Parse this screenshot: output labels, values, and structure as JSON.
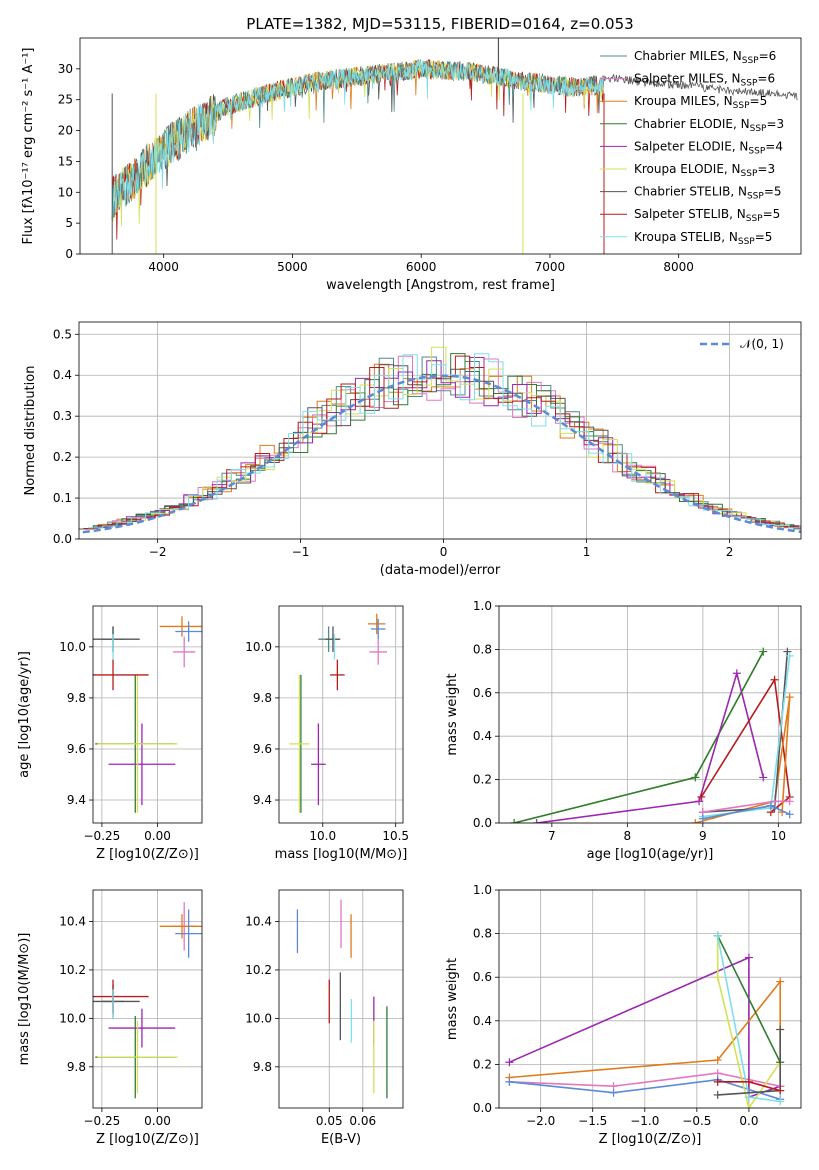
{
  "colors": {
    "Chabrier MILES": "#4e8c8c",
    "Salpeter MILES": "#e377c2",
    "Kroupa MILES": "#e07b1a",
    "Chabrier ELODIE": "#2e7d32",
    "Salpeter ELODIE": "#9c27b0",
    "Kroupa ELODIE": "#d4e157",
    "Chabrier STELIB": "#555555",
    "Salpeter STELIB": "#b71c1c",
    "Kroupa STELIB": "#80deea",
    "Blue": "#5b8ad6"
  },
  "chart_data": [
    {
      "type": "line",
      "title": "PLATE=1382, MJD=53115, FIBERID=0164, z=0.053",
      "xlabel": "wavelength [Angstrom, rest frame]",
      "ylabel": "Flux [fλ10⁻¹⁷ erg cm⁻² s⁻¹ A⁻¹]",
      "xlim": [
        3350,
        8950
      ],
      "ylim": [
        0,
        35
      ],
      "xticks": [
        "4000",
        "5000",
        "6000",
        "7000",
        "8000"
      ],
      "yticks": [
        "0",
        "5",
        "10",
        "15",
        "20",
        "25",
        "30"
      ],
      "legend_position": "top-right",
      "series": [
        {
          "name": "Chabrier MILES, N",
          "sub": "SSP",
          "suffix": "=6"
        },
        {
          "name": "Salpeter MILES, N",
          "sub": "SSP",
          "suffix": "=6"
        },
        {
          "name": "Kroupa MILES, N",
          "sub": "SSP",
          "suffix": "=5"
        },
        {
          "name": "Chabrier ELODIE, N",
          "sub": "SSP",
          "suffix": "=3"
        },
        {
          "name": "Salpeter ELODIE, N",
          "sub": "SSP",
          "suffix": "=4"
        },
        {
          "name": "Kroupa ELODIE, N",
          "sub": "SSP",
          "suffix": "=3"
        },
        {
          "name": "Chabrier STELIB, N",
          "sub": "SSP",
          "suffix": "=5"
        },
        {
          "name": "Salpeter STELIB, N",
          "sub": "SSP",
          "suffix": "=5"
        },
        {
          "name": "Kroupa STELIB, N",
          "sub": "SSP",
          "suffix": "=5"
        }
      ],
      "continuum_points": [
        [
          3600,
          9
        ],
        [
          3800,
          13
        ],
        [
          4000,
          17
        ],
        [
          4200,
          20
        ],
        [
          4500,
          24
        ],
        [
          4800,
          26
        ],
        [
          5200,
          28
        ],
        [
          5600,
          29
        ],
        [
          6000,
          30
        ],
        [
          6400,
          29.5
        ],
        [
          6800,
          28
        ],
        [
          7200,
          27
        ],
        [
          7420,
          27.5
        ]
      ]
    },
    {
      "type": "histogram",
      "xlabel": "(data-model)/error",
      "ylabel": "Normed distribution",
      "xlim": [
        -2.55,
        2.5
      ],
      "ylim": [
        0,
        0.53
      ],
      "xticks": [
        "−2",
        "−1",
        "0",
        "1",
        "2"
      ],
      "yticks": [
        "0.0",
        "0.1",
        "0.2",
        "0.3",
        "0.4",
        "0.5"
      ],
      "legend": "𝒩(0, 1)",
      "bin_width": 0.1,
      "bin_start": -2.55
    },
    {
      "type": "scatter",
      "xlabel": "Z [log10(Z/Z⊙)]",
      "ylabel": "age [log10(age/yr)]",
      "xlim": [
        -0.29,
        0.2
      ],
      "ylim": [
        9.31,
        10.16
      ],
      "xticks": [
        "−0.25",
        "0.00"
      ],
      "yticks": [
        "9.4",
        "9.6",
        "9.8",
        "10.0"
      ],
      "points": [
        {
          "s": "Chabrier MILES",
          "x": -0.2,
          "y": 10.03,
          "xerr": 0.05,
          "yerr": 0.05
        },
        {
          "s": "Salpeter MILES",
          "x": 0.12,
          "y": 9.98,
          "xerr": 0.05,
          "yerr": 0.06
        },
        {
          "s": "Kroupa MILES",
          "x": 0.11,
          "y": 10.08,
          "xerr": 0.1,
          "yerr": 0.04
        },
        {
          "s": "Chabrier ELODIE",
          "x": -0.1,
          "y": 9.62,
          "xerr": 0.18,
          "yerr": 0.27
        },
        {
          "s": "Salpeter ELODIE",
          "x": -0.07,
          "y": 9.54,
          "xerr": 0.15,
          "yerr": 0.16
        },
        {
          "s": "Kroupa ELODIE",
          "x": -0.09,
          "y": 9.62,
          "xerr": 0.18,
          "yerr": 0.27
        },
        {
          "s": "Chabrier STELIB",
          "x": -0.2,
          "y": 10.03,
          "xerr": 0.12,
          "yerr": 0.05
        },
        {
          "s": "Salpeter STELIB",
          "x": -0.2,
          "y": 9.89,
          "xerr": 0.16,
          "yerr": 0.06
        },
        {
          "s": "Kroupa STELIB",
          "x": -0.2,
          "y": 10.0,
          "xerr": 0.0,
          "yerr": 0.05
        },
        {
          "s": "Blue",
          "x": 0.14,
          "y": 10.06,
          "xerr": 0.06,
          "yerr": 0.04
        }
      ]
    },
    {
      "type": "scatter",
      "xlabel": "mass [log10(M/M⊙)]",
      "ylabel": "",
      "xlim": [
        9.7,
        10.55
      ],
      "ylim": [
        9.31,
        10.16
      ],
      "xticks": [
        "10.0",
        "10.5"
      ],
      "yticks": [
        "9.4",
        "9.6",
        "9.8",
        "10.0"
      ],
      "points": [
        {
          "s": "Chabrier MILES",
          "x": 10.04,
          "y": 10.03,
          "xerr": 0.07,
          "yerr": 0.05
        },
        {
          "s": "Salpeter MILES",
          "x": 10.38,
          "y": 9.98,
          "xerr": 0.06,
          "yerr": 0.05
        },
        {
          "s": "Kroupa MILES",
          "x": 10.37,
          "y": 10.09,
          "xerr": 0.06,
          "yerr": 0.04
        },
        {
          "s": "Chabrier ELODIE",
          "x": 9.85,
          "y": 9.62,
          "xerr": 0.0,
          "yerr": 0.27
        },
        {
          "s": "Salpeter ELODIE",
          "x": 9.97,
          "y": 9.54,
          "xerr": 0.05,
          "yerr": 0.16
        },
        {
          "s": "Kroupa ELODIE",
          "x": 9.84,
          "y": 9.62,
          "xerr": 0.07,
          "yerr": 0.27
        },
        {
          "s": "Chabrier STELIB",
          "x": 10.07,
          "y": 10.03,
          "xerr": 0.05,
          "yerr": 0.05
        },
        {
          "s": "Salpeter STELIB",
          "x": 10.1,
          "y": 9.89,
          "xerr": 0.05,
          "yerr": 0.06
        },
        {
          "s": "Kroupa STELIB",
          "x": 10.08,
          "y": 10.0,
          "xerr": 0.0,
          "yerr": 0.05
        },
        {
          "s": "Blue",
          "x": 10.38,
          "y": 10.07,
          "xerr": 0.05,
          "yerr": 0.04
        }
      ]
    },
    {
      "type": "line",
      "xlabel": "age [log10(age/yr)]",
      "ylabel": "mass weight",
      "xlim": [
        6.3,
        10.3
      ],
      "ylim": [
        0,
        1.0
      ],
      "xticks": [
        "7",
        "8",
        "9",
        "10"
      ],
      "yticks": [
        "0.0",
        "0.2",
        "0.4",
        "0.6",
        "0.8",
        "1.0"
      ],
      "series": [
        {
          "s": "Kroupa ELODIE",
          "x": [
            6.5,
            8.9,
            9.8
          ],
          "y": [
            0.0,
            0.21,
            0.79
          ]
        },
        {
          "s": "Chabrier ELODIE",
          "x": [
            6.5,
            8.9,
            9.8
          ],
          "y": [
            0.0,
            0.21,
            0.79
          ]
        },
        {
          "s": "Salpeter ELODIE",
          "x": [
            6.8,
            8.95,
            9.45,
            9.8
          ],
          "y": [
            0.0,
            0.1,
            0.69,
            0.21
          ]
        },
        {
          "s": "Salpeter STELIB",
          "x": [
            8.98,
            9.95,
            10.15,
            9.9
          ],
          "y": [
            0.12,
            0.66,
            0.12,
            0.05
          ]
        },
        {
          "s": "Kroupa MILES",
          "x": [
            8.9,
            9.95,
            10.15,
            10.05
          ],
          "y": [
            0.0,
            0.1,
            0.58,
            0.05
          ]
        },
        {
          "s": "Chabrier STELIB",
          "x": [
            9.0,
            9.95,
            10.12
          ],
          "y": [
            0.05,
            0.07,
            0.79
          ]
        },
        {
          "s": "Kroupa STELIB",
          "x": [
            9.0,
            9.9,
            10.15
          ],
          "y": [
            0.03,
            0.07,
            0.77
          ]
        },
        {
          "s": "Salpeter MILES",
          "x": [
            9.0,
            9.95,
            10.15
          ],
          "y": [
            0.05,
            0.1,
            0.1
          ]
        },
        {
          "s": "Blue",
          "x": [
            9.0,
            9.9,
            10.15
          ],
          "y": [
            0.02,
            0.08,
            0.04
          ]
        }
      ]
    },
    {
      "type": "scatter",
      "xlabel": "Z [log10(Z/Z⊙)]",
      "ylabel": "mass [log10(M/M⊙)]",
      "xlim": [
        -0.29,
        0.2
      ],
      "ylim": [
        9.63,
        10.53
      ],
      "xticks": [
        "−0.25",
        "0.00"
      ],
      "yticks": [
        "9.8",
        "10.0",
        "10.2",
        "10.4"
      ],
      "points": [
        {
          "s": "Chabrier MILES",
          "x": -0.2,
          "y": 10.07,
          "xerr": 0.05,
          "yerr": 0.05
        },
        {
          "s": "Salpeter MILES",
          "x": 0.12,
          "y": 10.38,
          "xerr": 0.05,
          "yerr": 0.1
        },
        {
          "s": "Kroupa MILES",
          "x": 0.11,
          "y": 10.38,
          "xerr": 0.1,
          "yerr": 0.05
        },
        {
          "s": "Chabrier ELODIE",
          "x": -0.1,
          "y": 9.84,
          "xerr": 0.18,
          "yerr": 0.17
        },
        {
          "s": "Salpeter ELODIE",
          "x": -0.07,
          "y": 9.96,
          "xerr": 0.15,
          "yerr": 0.08
        },
        {
          "s": "Kroupa ELODIE",
          "x": -0.09,
          "y": 9.84,
          "xerr": 0.18,
          "yerr": 0.15
        },
        {
          "s": "Chabrier STELIB",
          "x": -0.2,
          "y": 10.07,
          "xerr": 0.12,
          "yerr": 0.07
        },
        {
          "s": "Salpeter STELIB",
          "x": -0.2,
          "y": 10.09,
          "xerr": 0.16,
          "yerr": 0.07
        },
        {
          "s": "Kroupa STELIB",
          "x": -0.2,
          "y": 10.06,
          "xerr": 0.0,
          "yerr": 0.06
        },
        {
          "s": "Blue",
          "x": 0.14,
          "y": 10.35,
          "xerr": 0.06,
          "yerr": 0.1
        }
      ]
    },
    {
      "type": "errorbar",
      "xlabel": "E(B-V)",
      "ylabel": "",
      "xlim": [
        0.035,
        0.072
      ],
      "ylim": [
        9.63,
        10.53
      ],
      "xticks": [
        "0.05",
        "0.06"
      ],
      "yticks": [
        "9.8",
        "10.0",
        "10.2",
        "10.4"
      ],
      "points": [
        {
          "s": "Blue",
          "x": 0.0405,
          "y": 10.36,
          "yerr": 0.09
        },
        {
          "s": "Salpeter MILES",
          "x": 0.0535,
          "y": 10.39,
          "yerr": 0.1
        },
        {
          "s": "Kroupa MILES",
          "x": 0.0565,
          "y": 10.34,
          "yerr": 0.09
        },
        {
          "s": "Salpeter STELIB",
          "x": 0.05,
          "y": 10.07,
          "yerr": 0.09
        },
        {
          "s": "Chabrier STELIB",
          "x": 0.0533,
          "y": 10.05,
          "yerr": 0.14
        },
        {
          "s": "Kroupa STELIB",
          "x": 0.0566,
          "y": 9.99,
          "yerr": 0.09
        },
        {
          "s": "Salpeter ELODIE",
          "x": 0.0633,
          "y": 9.99,
          "yerr": 0.1
        },
        {
          "s": "Kroupa ELODIE",
          "x": 0.0633,
          "y": 9.84,
          "yerr": 0.15
        },
        {
          "s": "Chabrier ELODIE",
          "x": 0.0672,
          "y": 9.86,
          "yerr": 0.19
        }
      ]
    },
    {
      "type": "line",
      "xlabel": "Z [log10(Z/Z⊙)]",
      "ylabel": "mass weight",
      "xlim": [
        -2.4,
        0.5
      ],
      "ylim": [
        0,
        1.0
      ],
      "xticks": [
        "−2.0",
        "−1.5",
        "−1.0",
        "−0.5",
        "0.0"
      ],
      "yticks": [
        "0.0",
        "0.2",
        "0.4",
        "0.6",
        "0.8",
        "1.0"
      ],
      "series": [
        {
          "s": "Salpeter ELODIE",
          "x": [
            -2.3,
            0.0,
            0.0,
            0.3
          ],
          "y": [
            0.21,
            0.69,
            0.05,
            0.1
          ]
        },
        {
          "s": "Kroupa MILES",
          "x": [
            -2.3,
            -0.3,
            0.3,
            0.3
          ],
          "y": [
            0.14,
            0.22,
            0.58,
            0.1
          ]
        },
        {
          "s": "Salpeter MILES",
          "x": [
            -2.3,
            -1.3,
            -0.3,
            0.3
          ],
          "y": [
            0.12,
            0.1,
            0.16,
            0.1
          ]
        },
        {
          "s": "Blue",
          "x": [
            -2.3,
            -1.3,
            -0.3,
            0.3
          ],
          "y": [
            0.12,
            0.07,
            0.13,
            0.04
          ]
        },
        {
          "s": "Kroupa ELODIE",
          "x": [
            -0.3,
            -0.3,
            0.0,
            0.3
          ],
          "y": [
            0.79,
            0.6,
            0.0,
            0.21
          ]
        },
        {
          "s": "Chabrier ELODIE",
          "x": [
            -0.3,
            0.3
          ],
          "y": [
            0.79,
            0.21
          ]
        },
        {
          "s": "Kroupa STELIB",
          "x": [
            -0.3,
            0.0,
            0.3
          ],
          "y": [
            0.79,
            0.05,
            0.03
          ]
        },
        {
          "s": "Chabrier STELIB",
          "x": [
            -0.3,
            0.3,
            0.3
          ],
          "y": [
            0.06,
            0.08,
            0.36
          ]
        },
        {
          "s": "Salpeter STELIB",
          "x": [
            -0.3,
            0.0,
            0.3
          ],
          "y": [
            0.12,
            0.12,
            0.08
          ]
        }
      ]
    }
  ]
}
